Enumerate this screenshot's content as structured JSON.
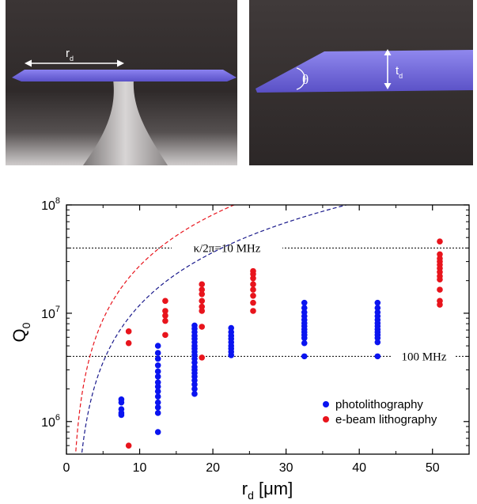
{
  "images": {
    "left": {
      "label_base": "r",
      "label_sub": "d"
    },
    "right": {
      "angle_label": "θ",
      "label_base": "t",
      "label_sub": "d"
    }
  },
  "chart_data": {
    "type": "scatter",
    "title": "",
    "xlabel": {
      "base": "r",
      "sub": "d",
      "unit": " [μm]"
    },
    "ylabel": {
      "base": "Q",
      "sub": "0"
    },
    "xlim": [
      0,
      55
    ],
    "ylim": [
      500000,
      100000000
    ],
    "yscale": "log",
    "x_ticks": [
      0,
      10,
      20,
      30,
      40,
      50
    ],
    "y_ticks": [
      {
        "value": 1000000,
        "base": "10",
        "exp": "6"
      },
      {
        "value": 10000000,
        "base": "10",
        "exp": "7"
      },
      {
        "value": 100000000,
        "base": "10",
        "exp": "8"
      }
    ],
    "reference_lines": [
      {
        "label": "κ/2π=10 MHz",
        "y": 40000000
      },
      {
        "label": "100 MHz",
        "y": 4000000
      }
    ],
    "fit_curves": [
      {
        "name": "e-beam fit",
        "color": "#e8141c",
        "x0": 0.6,
        "coef": 950000
      },
      {
        "name": "photolithography fit",
        "color": "#1a1a8c",
        "x0": 1.0,
        "coef": 440000
      }
    ],
    "legend": {
      "position": "bottom-right"
    },
    "series": [
      {
        "name": "photolithography",
        "color": "#0a14f0",
        "points": [
          [
            7.5,
            1600000
          ],
          [
            7.5,
            1500000
          ],
          [
            7.5,
            1300000
          ],
          [
            7.5,
            1200000
          ],
          [
            7.5,
            1150000
          ],
          [
            12.5,
            5000000
          ],
          [
            12.5,
            4300000
          ],
          [
            12.5,
            3800000
          ],
          [
            12.5,
            3300000
          ],
          [
            12.5,
            2900000
          ],
          [
            12.5,
            2600000
          ],
          [
            12.5,
            2300000
          ],
          [
            12.5,
            2100000
          ],
          [
            12.5,
            1900000
          ],
          [
            12.5,
            1700000
          ],
          [
            12.5,
            1500000
          ],
          [
            12.5,
            1350000
          ],
          [
            12.5,
            1200000
          ],
          [
            12.5,
            800000
          ],
          [
            17.5,
            7700000
          ],
          [
            17.5,
            7200000
          ],
          [
            17.5,
            6700000
          ],
          [
            17.5,
            6200000
          ],
          [
            17.5,
            5800000
          ],
          [
            17.5,
            5400000
          ],
          [
            17.5,
            5000000
          ],
          [
            17.5,
            4700000
          ],
          [
            17.5,
            4400000
          ],
          [
            17.5,
            4100000
          ],
          [
            17.5,
            3800000
          ],
          [
            17.5,
            3500000
          ],
          [
            17.5,
            3200000
          ],
          [
            17.5,
            3000000
          ],
          [
            17.5,
            2800000
          ],
          [
            17.5,
            2600000
          ],
          [
            17.5,
            2400000
          ],
          [
            17.5,
            2200000
          ],
          [
            17.5,
            2000000
          ],
          [
            17.5,
            1800000
          ],
          [
            22.5,
            7300000
          ],
          [
            22.5,
            6700000
          ],
          [
            22.5,
            6200000
          ],
          [
            22.5,
            5800000
          ],
          [
            22.5,
            5400000
          ],
          [
            22.5,
            5000000
          ],
          [
            22.5,
            4700000
          ],
          [
            22.5,
            4400000
          ],
          [
            22.5,
            4100000
          ],
          [
            32.5,
            12500000
          ],
          [
            32.5,
            11200000
          ],
          [
            32.5,
            10200000
          ],
          [
            32.5,
            9400000
          ],
          [
            32.5,
            8700000
          ],
          [
            32.5,
            8100000
          ],
          [
            32.5,
            7600000
          ],
          [
            32.5,
            7100000
          ],
          [
            32.5,
            6700000
          ],
          [
            32.5,
            6300000
          ],
          [
            32.5,
            5900000
          ],
          [
            32.5,
            5300000
          ],
          [
            32.5,
            4000000
          ],
          [
            42.5,
            12500000
          ],
          [
            42.5,
            11200000
          ],
          [
            42.5,
            10200000
          ],
          [
            42.5,
            9400000
          ],
          [
            42.5,
            8700000
          ],
          [
            42.5,
            8100000
          ],
          [
            42.5,
            7600000
          ],
          [
            42.5,
            7100000
          ],
          [
            42.5,
            6700000
          ],
          [
            42.5,
            6300000
          ],
          [
            42.5,
            5900000
          ],
          [
            42.5,
            5400000
          ],
          [
            42.5,
            4000000
          ]
        ]
      },
      {
        "name": "e-beam lithography",
        "color": "#e8141c",
        "points": [
          [
            8.5,
            6800000
          ],
          [
            8.5,
            5300000
          ],
          [
            8.5,
            600000
          ],
          [
            13.5,
            13000000
          ],
          [
            13.5,
            10500000
          ],
          [
            13.5,
            9500000
          ],
          [
            13.5,
            8500000
          ],
          [
            13.5,
            6300000
          ],
          [
            18.5,
            18500000
          ],
          [
            18.5,
            16500000
          ],
          [
            18.5,
            15000000
          ],
          [
            18.5,
            13000000
          ],
          [
            18.5,
            11500000
          ],
          [
            18.5,
            10500000
          ],
          [
            18.5,
            7500000
          ],
          [
            18.5,
            3900000
          ],
          [
            25.5,
            24500000
          ],
          [
            25.5,
            23000000
          ],
          [
            25.5,
            21000000
          ],
          [
            25.5,
            18500000
          ],
          [
            25.5,
            16500000
          ],
          [
            25.5,
            14500000
          ],
          [
            25.5,
            12500000
          ],
          [
            25.5,
            10500000
          ],
          [
            51,
            46000000
          ],
          [
            51,
            35000000
          ],
          [
            51,
            32000000
          ],
          [
            51,
            30000000
          ],
          [
            51,
            28000000
          ],
          [
            51,
            26000000
          ],
          [
            51,
            24000000
          ],
          [
            51,
            22000000
          ],
          [
            51,
            20500000
          ],
          [
            51,
            16500000
          ],
          [
            51,
            13000000
          ],
          [
            51,
            12000000
          ]
        ]
      }
    ]
  }
}
